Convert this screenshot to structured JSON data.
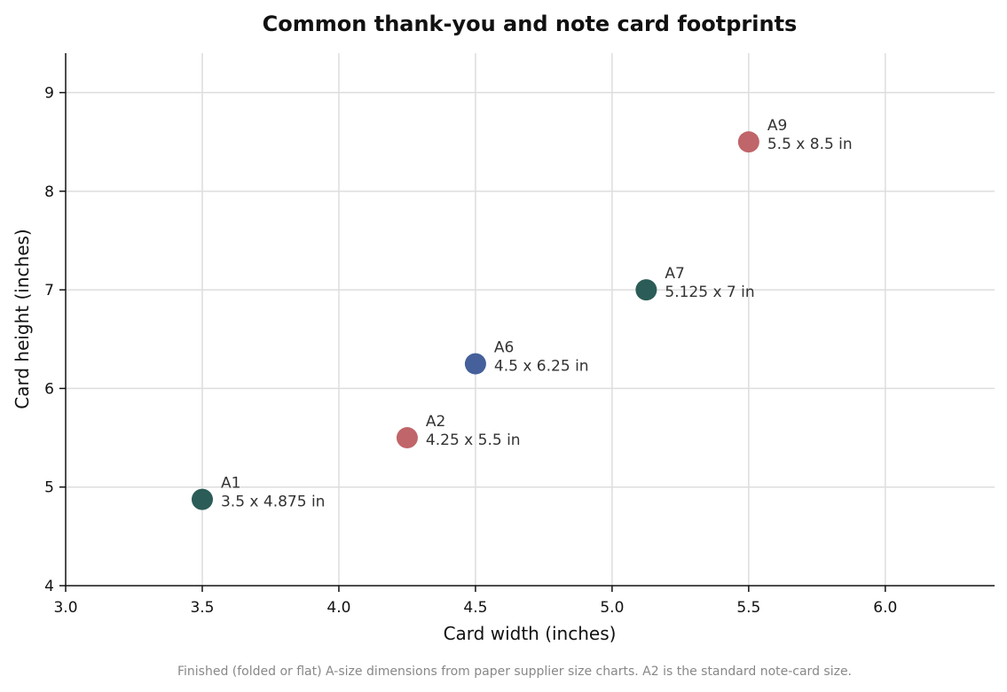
{
  "chart_data": {
    "type": "scatter",
    "title": "Common thank-you and note card footprints",
    "xlabel": "Card width (inches)",
    "ylabel": "Card height (inches)",
    "xlim": [
      3.0,
      6.4
    ],
    "ylim": [
      4,
      9.4
    ],
    "xticks": [
      "3.0",
      "3.5",
      "4.0",
      "4.5",
      "5.0",
      "5.5",
      "6.0"
    ],
    "yticks": [
      "4",
      "5",
      "6",
      "7",
      "8",
      "9"
    ],
    "grid": true,
    "points": [
      {
        "name": "A1",
        "x": 3.5,
        "y": 4.875,
        "label": "3.5 x 4.875 in",
        "color": "#2b5c57"
      },
      {
        "name": "A2",
        "x": 4.25,
        "y": 5.5,
        "label": "4.25 x 5.5 in",
        "color": "#c0656a"
      },
      {
        "name": "A6",
        "x": 4.5,
        "y": 6.25,
        "label": "4.5 x 6.25 in",
        "color": "#45609a"
      },
      {
        "name": "A7",
        "x": 5.125,
        "y": 7,
        "label": "5.125 x 7 in",
        "color": "#2b5c57"
      },
      {
        "name": "A9",
        "x": 5.5,
        "y": 8.5,
        "label": "5.5 x 8.5 in",
        "color": "#c0656a"
      }
    ],
    "caption": "Finished (folded or flat) A-size dimensions from paper supplier size charts. A2 is the standard note-card size."
  }
}
